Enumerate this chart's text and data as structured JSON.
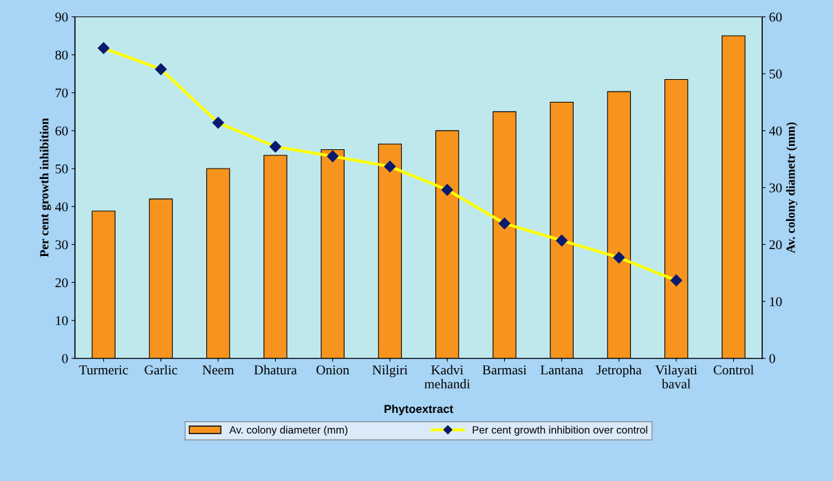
{
  "chart_data": {
    "type": "bar",
    "xlabel": "Phytoextract",
    "ylabel": "Per cent growth inhibition",
    "y2label": "Av. colony diametr (mm)",
    "categories": [
      "Turmeric",
      "Garlic",
      "Neem",
      "Dhatura",
      "Onion",
      "Nilgiri",
      "Kadvi\nmehandi",
      "Barmasi",
      "Lantana",
      "Jetropha",
      "Vilayati\nbaval",
      "Control"
    ],
    "series": [
      {
        "name": "Av. colony diameter (mm)",
        "color": "#f7941d",
        "values": [
          38.8,
          42,
          50,
          53.5,
          55,
          56.5,
          60,
          65,
          67.5,
          70.3,
          73.5,
          85
        ]
      },
      {
        "name": "Per cent growth inhibition over control",
        "type": "line",
        "axis": "y2",
        "color": "#ffff00",
        "values": [
          54.5,
          50.8,
          41.4,
          37.2,
          35.5,
          33.7,
          29.6,
          23.7,
          20.7,
          17.7,
          13.7,
          null
        ]
      }
    ],
    "ylim": [
      0,
      90
    ],
    "yticks": [
      0,
      10,
      20,
      30,
      40,
      50,
      60,
      70,
      80,
      90
    ],
    "y2lim": [
      0,
      60
    ],
    "y2ticks": [
      0,
      10,
      20,
      30,
      40,
      50,
      60
    ],
    "grid": false,
    "legend": "bottom",
    "marker": "diamond"
  }
}
